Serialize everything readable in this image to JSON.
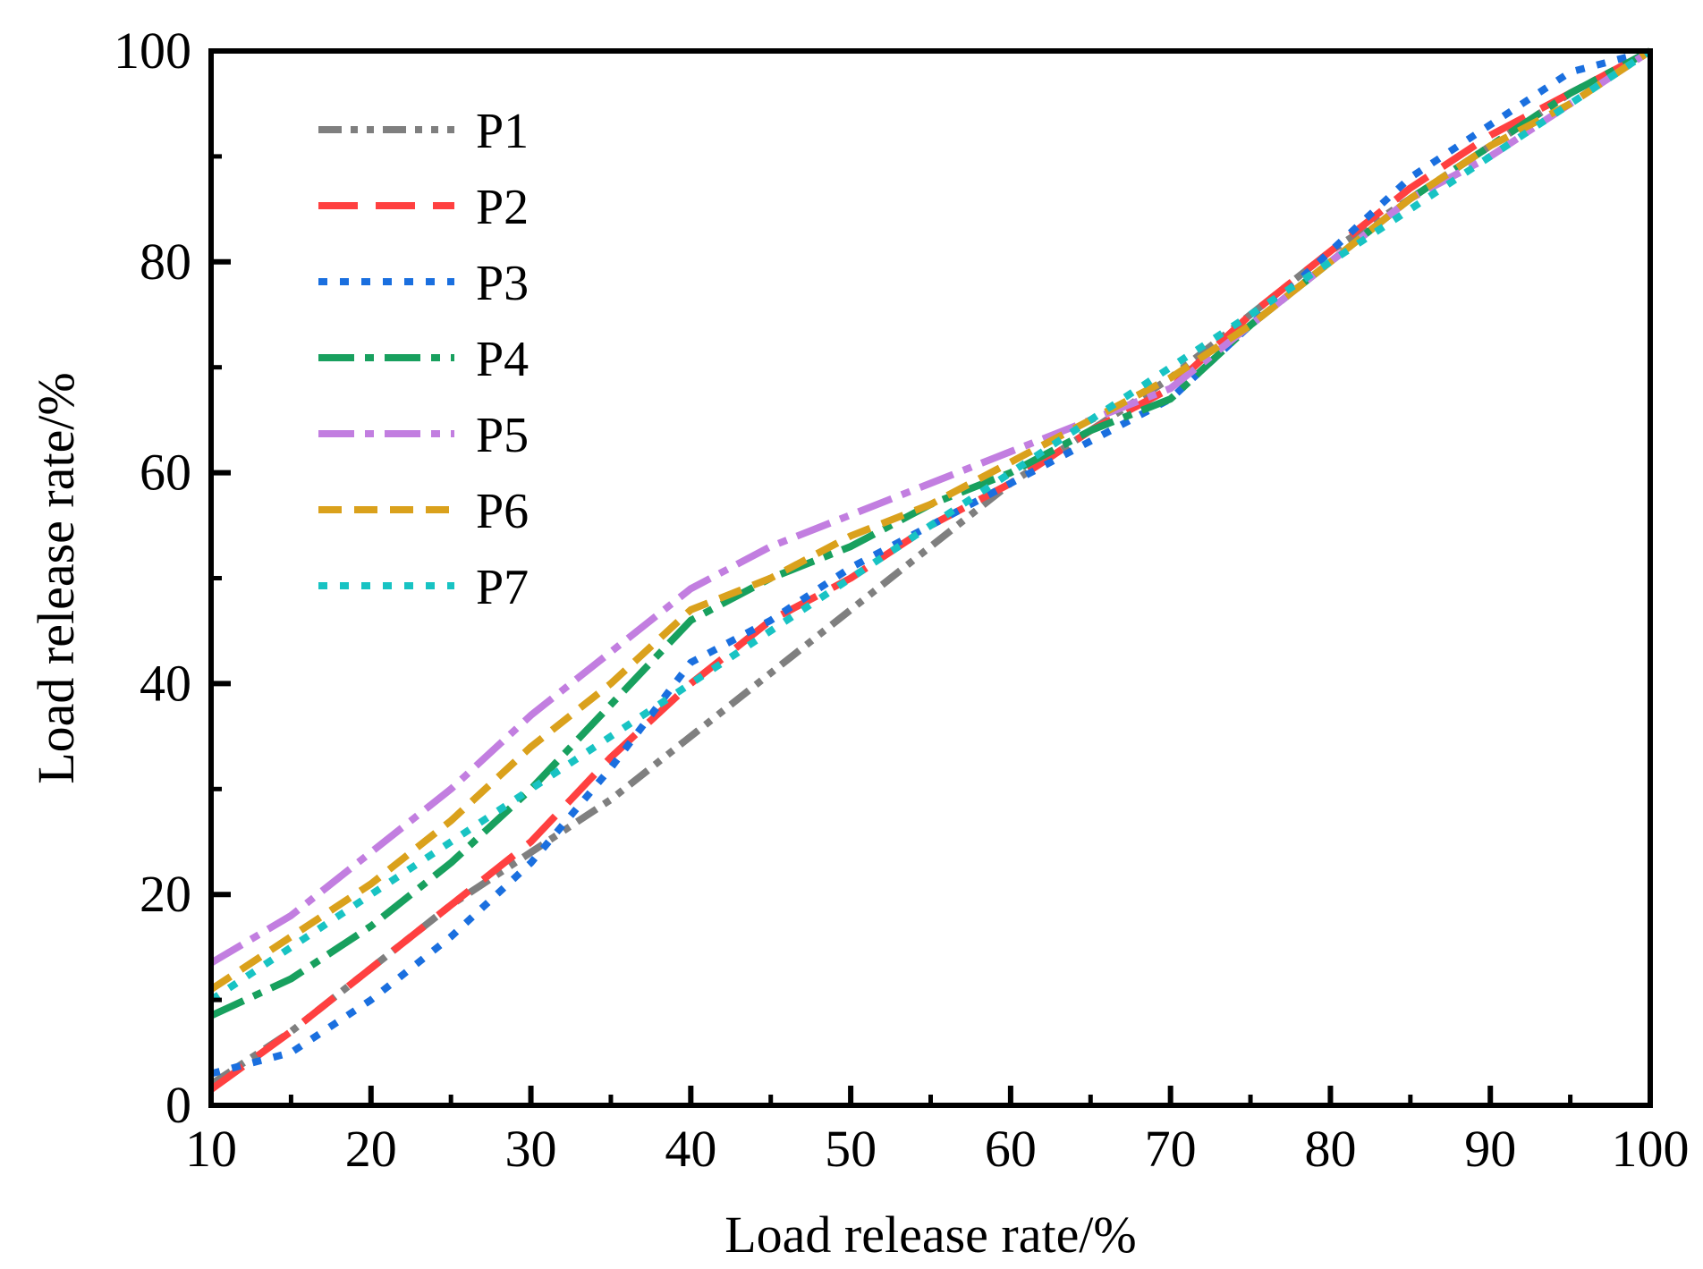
{
  "chart_data": {
    "type": "line",
    "title": "",
    "xlabel": "Load release rate/%",
    "ylabel": "Load release rate/%",
    "xlim": [
      10,
      100
    ],
    "ylim": [
      0,
      100
    ],
    "xticks": [
      10,
      20,
      30,
      40,
      50,
      60,
      70,
      80,
      90,
      100
    ],
    "yticks": [
      0,
      20,
      40,
      60,
      80,
      100
    ],
    "grid": false,
    "legend_position": "top-left",
    "series": [
      {
        "name": "P1",
        "color": "#7f7f7f",
        "dash": "dash-dot-dot",
        "x": [
          10,
          15,
          20,
          25,
          30,
          35,
          40,
          45,
          50,
          55,
          60,
          65,
          70,
          75,
          80,
          85,
          90,
          95,
          100
        ],
        "y": [
          2,
          7,
          13,
          19,
          24,
          29,
          35,
          41,
          47,
          53,
          59,
          64,
          69,
          75,
          81,
          86,
          91,
          96,
          100
        ]
      },
      {
        "name": "P2",
        "color": "#ff4040",
        "dash": "long-dash",
        "x": [
          10,
          15,
          20,
          25,
          30,
          35,
          40,
          45,
          50,
          55,
          60,
          65,
          70,
          75,
          80,
          85,
          90,
          95,
          100
        ],
        "y": [
          1.5,
          7,
          13,
          19,
          25,
          33,
          40,
          46,
          50,
          55,
          59,
          64,
          68,
          75,
          81,
          87,
          92,
          96,
          100
        ]
      },
      {
        "name": "P3",
        "color": "#1a6fdf",
        "dash": "dotted",
        "x": [
          10,
          15,
          20,
          25,
          30,
          35,
          40,
          45,
          50,
          55,
          60,
          65,
          70,
          75,
          80,
          85,
          90,
          95,
          100
        ],
        "y": [
          3,
          5,
          10,
          16,
          23,
          32,
          42,
          46,
          51,
          55,
          59,
          63,
          67,
          74,
          81,
          88,
          93,
          98,
          100
        ]
      },
      {
        "name": "P4",
        "color": "#18a05e",
        "dash": "dash-dot",
        "x": [
          10,
          15,
          20,
          25,
          30,
          35,
          40,
          45,
          50,
          55,
          60,
          65,
          70,
          75,
          80,
          85,
          90,
          95,
          100
        ],
        "y": [
          8.5,
          12,
          17,
          23,
          30,
          38,
          46,
          50,
          53,
          57,
          60,
          64,
          67,
          74,
          80,
          86,
          91,
          96,
          100
        ]
      },
      {
        "name": "P5",
        "color": "#c27ee0",
        "dash": "dash-dot",
        "x": [
          10,
          15,
          20,
          25,
          30,
          35,
          40,
          45,
          50,
          55,
          60,
          65,
          70,
          75,
          80,
          85,
          90,
          95,
          100
        ],
        "y": [
          13.5,
          18,
          24,
          30,
          37,
          43,
          49,
          53,
          56,
          59,
          62,
          65,
          68,
          74,
          80,
          86,
          90,
          95,
          100
        ]
      },
      {
        "name": "P6",
        "color": "#daa11c",
        "dash": "dashed",
        "x": [
          10,
          15,
          20,
          25,
          30,
          35,
          40,
          45,
          50,
          55,
          60,
          65,
          70,
          75,
          80,
          85,
          90,
          95,
          100
        ],
        "y": [
          11,
          16,
          21,
          27,
          34,
          40,
          47,
          50,
          54,
          57,
          61,
          65,
          69,
          74,
          80,
          86,
          91,
          95,
          100
        ]
      },
      {
        "name": "P7",
        "color": "#18c3c3",
        "dash": "dotted",
        "x": [
          10,
          15,
          20,
          25,
          30,
          35,
          40,
          45,
          50,
          55,
          60,
          65,
          70,
          75,
          80,
          85,
          90,
          95,
          100
        ],
        "y": [
          10,
          15,
          20,
          25,
          30,
          35,
          40,
          45,
          50,
          55,
          60,
          65,
          70,
          75,
          80,
          85,
          90,
          95,
          100
        ]
      }
    ]
  }
}
